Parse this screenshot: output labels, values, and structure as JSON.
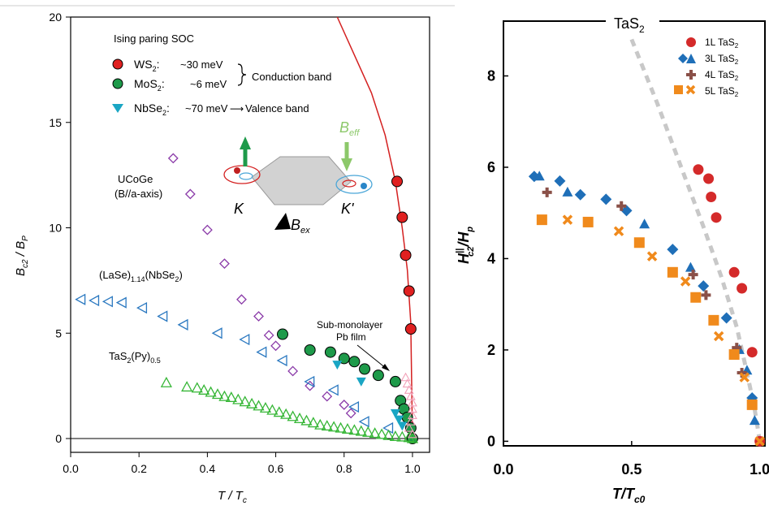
{
  "chart_data": [
    {
      "type": "scatter",
      "xlim": [
        0,
        1.05
      ],
      "ylim": [
        0,
        20
      ],
      "xticks": [
        "0.0",
        "0.2",
        "0.4",
        "0.6",
        "0.8",
        "1.0"
      ],
      "yticks": [
        "0",
        "5",
        "10",
        "15",
        "20"
      ],
      "xlabel": {
        "main": "T / T",
        "sub": "c"
      },
      "ylabel": {
        "main": "B",
        "sub1": "c2",
        "mid": " / B",
        "sub2": "P"
      },
      "grid": false,
      "legend": {
        "title": "Ising paring SOC",
        "entries": [
          {
            "pre": "WS",
            "sub": "2",
            "post": ":",
            "value": "~30 meV",
            "color": "#e02020",
            "marker": "circle"
          },
          {
            "pre": "MoS",
            "sub": "2",
            "post": ":",
            "value": "~6 meV",
            "color": "#1e9a4a",
            "marker": "circle"
          },
          {
            "pre": "NbSe",
            "sub": "2",
            "post": ":",
            "value": "~70 meV",
            "color": "#1aa6c4",
            "marker": "triangle-down"
          }
        ],
        "conduction_band": "Conduction band",
        "valence_band": "Valence band",
        "arrow": "⟶"
      },
      "annotations": {
        "ucoge_1": "UCoGe",
        "ucoge_2": "(B//a-axis)",
        "lase_pre": "(LaSe)",
        "lase_sub": "1.14",
        "lase_post": "(NbSe",
        "lase_sub2": "2",
        "lase_end": ")",
        "tas2py_pre": "TaS",
        "tas2py_sub": "2",
        "tas2py_mid": "(Py)",
        "tas2py_sub2": "0.5",
        "pb_1": "Sub-monolayer",
        "pb_2": "Pb film",
        "inset_k": "K",
        "inset_kprime": "K'",
        "inset_beff": "B",
        "inset_beff_sub": "eff",
        "inset_bex": "B",
        "inset_bex_sub": "ex"
      },
      "series": [
        {
          "name": "WS2",
          "color": "#e02020",
          "marker": "circle",
          "x": [
            0.955,
            0.97,
            0.98,
            0.99,
            0.995
          ],
          "y": [
            12.2,
            10.5,
            8.7,
            7.0,
            5.2
          ]
        },
        {
          "name": "MoS2",
          "color": "#1e9a4a",
          "marker": "circle",
          "x": [
            0.62,
            0.7,
            0.76,
            0.8,
            0.83,
            0.86,
            0.9,
            0.95,
            0.965,
            0.975,
            0.985,
            0.995,
            1.0
          ],
          "y": [
            4.95,
            4.2,
            4.1,
            3.8,
            3.65,
            3.3,
            3.0,
            2.7,
            1.8,
            1.4,
            1.0,
            0.5,
            0.0
          ]
        },
        {
          "name": "NbSe2",
          "color": "#1aa6c4",
          "marker": "triangle-down",
          "x": [
            0.78,
            0.85,
            0.95,
            0.96,
            0.97
          ],
          "y": [
            3.5,
            2.7,
            1.2,
            0.9,
            0.6
          ]
        },
        {
          "name": "UCoGe",
          "color": "#8a3aa8",
          "marker": "diamond",
          "x": [
            0.3,
            0.35,
            0.4,
            0.45,
            0.5,
            0.55,
            0.58,
            0.6,
            0.65,
            0.7,
            0.75,
            0.8,
            0.82
          ],
          "y": [
            13.3,
            11.6,
            9.9,
            8.3,
            6.6,
            5.8,
            4.9,
            4.4,
            3.2,
            2.5,
            2.0,
            1.6,
            1.2
          ]
        },
        {
          "name": "LaSe",
          "color": "#2a78c0",
          "marker": "triangle-left",
          "x": [
            0.03,
            0.07,
            0.11,
            0.15,
            0.21,
            0.27,
            0.33,
            0.43,
            0.51,
            0.56,
            0.62,
            0.7,
            0.77,
            0.83,
            0.86,
            0.93
          ],
          "y": [
            6.6,
            6.55,
            6.5,
            6.45,
            6.2,
            5.8,
            5.4,
            5.0,
            4.7,
            4.1,
            3.7,
            2.7,
            2.3,
            1.5,
            0.8,
            0.5
          ]
        },
        {
          "name": "TaS2(Py)",
          "color": "#36b636",
          "marker": "triangle-up",
          "x": [
            0.28,
            0.34,
            0.37,
            0.39,
            0.41,
            0.43,
            0.45,
            0.47,
            0.49,
            0.51,
            0.53,
            0.55,
            0.57,
            0.59,
            0.61,
            0.63,
            0.65,
            0.67,
            0.69,
            0.71,
            0.73,
            0.75,
            0.77,
            0.79,
            0.81,
            0.83,
            0.85,
            0.87,
            0.89,
            0.91,
            0.93,
            0.95,
            0.97,
            0.99,
            1.0
          ],
          "y": [
            2.65,
            2.45,
            2.4,
            2.3,
            2.2,
            2.1,
            2.0,
            1.95,
            1.85,
            1.75,
            1.65,
            1.55,
            1.45,
            1.35,
            1.25,
            1.15,
            1.05,
            0.95,
            0.85,
            0.75,
            0.65,
            0.6,
            0.55,
            0.5,
            0.45,
            0.4,
            0.35,
            0.3,
            0.25,
            0.2,
            0.15,
            0.1,
            0.08,
            0.05,
            0.0
          ]
        },
        {
          "name": "Pb film",
          "color": "#f2a0b8",
          "marker": "triangle-up-open",
          "x": [
            0.98,
            0.985,
            0.99,
            0.995,
            1.0,
            1.0,
            1.0,
            0.995,
            0.99,
            1.0
          ],
          "y": [
            2.9,
            2.6,
            2.3,
            2.0,
            1.7,
            1.4,
            1.1,
            0.8,
            0.5,
            0.2
          ]
        }
      ],
      "curve": {
        "color": "#d42020",
        "x": [
          0.78,
          0.83,
          0.88,
          0.92,
          0.95,
          0.97,
          0.985,
          0.995,
          1.0
        ],
        "y": [
          20,
          18.2,
          16.4,
          14.4,
          12.2,
          10.0,
          8.0,
          5.5,
          0.0
        ]
      }
    },
    {
      "type": "scatter",
      "title": {
        "pre": "TaS",
        "sub": "2"
      },
      "xlim": [
        0,
        1.02
      ],
      "ylim": [
        -0.1,
        9.2
      ],
      "xticks": [
        "0.0",
        "0.5",
        "1.0"
      ],
      "yticks": [
        "0",
        "2",
        "4",
        "6",
        "8"
      ],
      "xlabel": {
        "main": "T/T",
        "sub": "c0"
      },
      "ylabel": {
        "main": "H",
        "sup": "||",
        "sub": "c2",
        "mid": "/H",
        "sub2": "p"
      },
      "grid": false,
      "legend_position": "top-right",
      "legend": [
        {
          "label": "1L TaS",
          "sub": "2",
          "color": "#d42a2a",
          "marker": "circle"
        },
        {
          "label": "3L TaS",
          "sub": "2",
          "color": "#1f6fb8",
          "marker": "diamond-triangle"
        },
        {
          "label": "4L TaS",
          "sub": "2",
          "color": "#8a5048",
          "marker": "plus"
        },
        {
          "label": "5L TaS",
          "sub": "2",
          "color": "#f08a1c",
          "marker": "square-x"
        }
      ],
      "series": [
        {
          "name": "1L TaS2",
          "color": "#d42a2a",
          "marker": "circle",
          "x": [
            0.76,
            0.8,
            0.81,
            0.83,
            0.9,
            0.93,
            0.97,
            1.0
          ],
          "y": [
            5.95,
            5.75,
            5.35,
            4.9,
            3.7,
            3.35,
            1.95,
            0.0
          ]
        },
        {
          "name": "3L TaS2 (diamond)",
          "color": "#1f6fb8",
          "marker": "diamond",
          "x": [
            0.12,
            0.22,
            0.3,
            0.4,
            0.48,
            0.66,
            0.78,
            0.87,
            0.97
          ],
          "y": [
            5.8,
            5.7,
            5.4,
            5.3,
            5.05,
            4.2,
            3.4,
            2.7,
            0.95
          ]
        },
        {
          "name": "3L TaS2 (triangle)",
          "color": "#1f6fb8",
          "marker": "triangle",
          "x": [
            0.14,
            0.25,
            0.55,
            0.73,
            0.92,
            0.95,
            0.98
          ],
          "y": [
            5.8,
            5.45,
            4.75,
            3.8,
            2.0,
            1.55,
            0.45
          ]
        },
        {
          "name": "4L TaS2",
          "color": "#8a5048",
          "marker": "plus",
          "x": [
            0.17,
            0.46,
            0.74,
            0.79,
            0.91,
            0.93,
            0.97
          ],
          "y": [
            5.45,
            5.15,
            3.65,
            3.2,
            2.05,
            1.5,
            0.8
          ]
        },
        {
          "name": "5L TaS2 (square)",
          "color": "#f08a1c",
          "marker": "square",
          "x": [
            0.15,
            0.33,
            0.53,
            0.66,
            0.75,
            0.82,
            0.9,
            0.97
          ],
          "y": [
            4.85,
            4.8,
            4.35,
            3.7,
            3.15,
            2.65,
            1.9,
            0.8
          ]
        },
        {
          "name": "5L TaS2 (x)",
          "color": "#f08a1c",
          "marker": "x",
          "x": [
            0.25,
            0.45,
            0.58,
            0.71,
            0.84,
            0.94,
            1.0
          ],
          "y": [
            4.85,
            4.6,
            4.05,
            3.5,
            2.3,
            1.4,
            0.0
          ]
        }
      ],
      "dashed_curve": {
        "color": "#c8c8c8",
        "x": [
          0.5,
          0.6,
          0.7,
          0.78,
          0.85,
          0.91,
          0.95,
          0.98,
          1.0
        ],
        "y": [
          8.8,
          7.4,
          5.9,
          4.7,
          3.6,
          2.5,
          1.5,
          0.7,
          0.0
        ]
      }
    }
  ]
}
